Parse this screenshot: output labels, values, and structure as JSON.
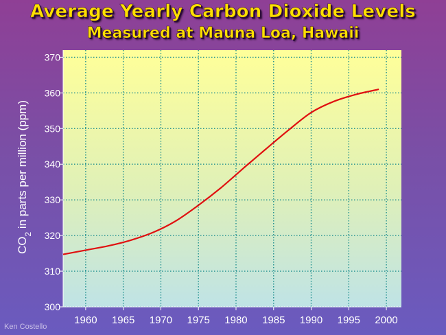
{
  "chart_data": {
    "type": "line",
    "title": "Average Yearly Carbon Dioxide Levels",
    "subtitle": "Measured at Mauna Loa, Hawaii",
    "ylabel_main": "CO",
    "ylabel_sub": "2",
    "ylabel_rest": " in parts per million (ppm)",
    "xlabel": "",
    "xlim": [
      1957,
      2002
    ],
    "ylim": [
      300,
      372
    ],
    "xticks": [
      1960,
      1965,
      1970,
      1975,
      1980,
      1985,
      1990,
      1995,
      2000
    ],
    "yticks": [
      300,
      310,
      320,
      330,
      340,
      350,
      360,
      370
    ],
    "grid": true,
    "line_color": "#e01010",
    "grid_color": "#1f8f8f",
    "series": [
      {
        "x": [
          1957,
          1960,
          1963,
          1966,
          1969,
          1972,
          1975,
          1978,
          1981,
          1984,
          1987,
          1990,
          1993,
          1996,
          1999
        ],
        "y": [
          314.7,
          315.9,
          317.1,
          318.7,
          320.9,
          324.1,
          328.5,
          333.4,
          338.9,
          344.3,
          349.6,
          354.5,
          357.6,
          359.6,
          361.0
        ]
      }
    ]
  },
  "credit": "Ken Costello"
}
